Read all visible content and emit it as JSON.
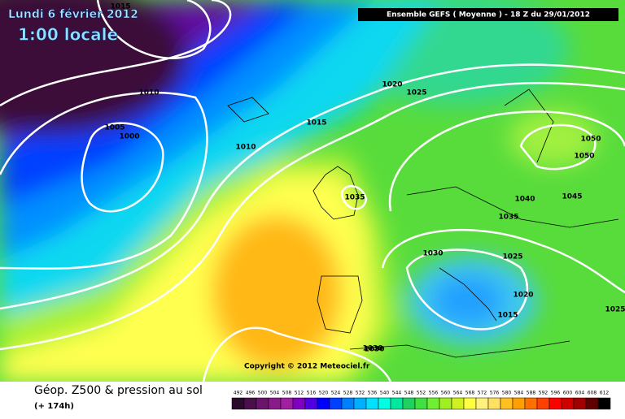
{
  "header": {
    "date": "Lundi 6 février 2012",
    "time": "1:00 locale",
    "run": "Ensemble GEFS ( Moyenne )  -  18 Z du 29/01/2012"
  },
  "isobars": [
    "1015",
    "1010",
    "1005",
    "1000",
    "1010",
    "1015",
    "1020",
    "1025",
    "1035",
    "1030",
    "1040",
    "1035",
    "1045",
    "1050",
    "1050",
    "1025",
    "1020",
    "1015",
    "1030",
    "1025",
    "1030"
  ],
  "copyright": "Copyright © 2012 Meteociel.fr",
  "footer": {
    "title": "Géop. Z500 & pression au sol",
    "lead": "(+ 174h)"
  },
  "legend": {
    "levels": [
      492,
      496,
      500,
      504,
      508,
      512,
      516,
      520,
      524,
      528,
      532,
      536,
      540,
      544,
      548,
      552,
      556,
      560,
      564,
      568,
      572,
      576,
      580,
      584,
      588,
      592,
      596,
      600,
      604,
      608,
      612
    ],
    "colors": [
      "#2b0a2b",
      "#4b0f4b",
      "#6a146a",
      "#8a1a8a",
      "#a020a0",
      "#8000c0",
      "#5000e0",
      "#0000ff",
      "#0040ff",
      "#0080ff",
      "#00b0ff",
      "#00e0ff",
      "#00ffe0",
      "#00e8a0",
      "#20d060",
      "#40e040",
      "#70f030",
      "#a0f020",
      "#d0f020",
      "#ffff40",
      "#fff080",
      "#ffe060",
      "#ffc020",
      "#ffa000",
      "#ff7000",
      "#ff4000",
      "#ff0000",
      "#d00000",
      "#a00000",
      "#600000",
      "#000000"
    ]
  }
}
